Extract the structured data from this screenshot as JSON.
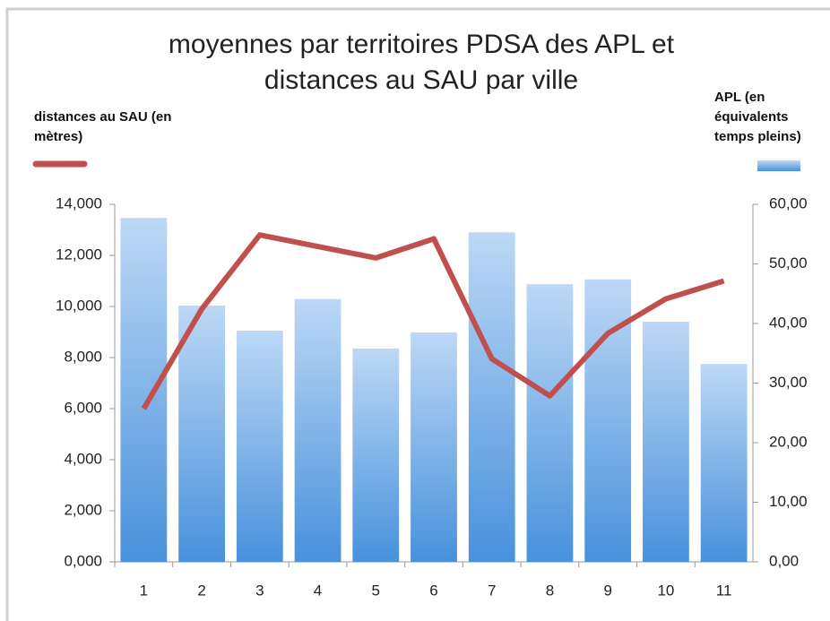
{
  "chart_data": {
    "type": "combo",
    "title": "moyennes par territoires PDSA des APL et distances au SAU par ville",
    "categories": [
      "1",
      "2",
      "3",
      "4",
      "5",
      "6",
      "7",
      "8",
      "9",
      "10",
      "11"
    ],
    "series": [
      {
        "name": "APL (en équivalents temps pleins)",
        "type": "bar",
        "axis": "y2",
        "color": "#5b9bd5",
        "values": [
          57.7,
          43.0,
          38.8,
          44.1,
          35.8,
          38.5,
          55.3,
          46.6,
          47.4,
          40.3,
          33.2
        ]
      },
      {
        "name": "distances au SAU (en mètres)",
        "type": "line",
        "axis": "y",
        "color": "#c0504d",
        "values": [
          6000,
          9900,
          12800,
          12350,
          11900,
          12650,
          7950,
          6500,
          8950,
          10300,
          11000
        ]
      }
    ],
    "ylim": [
      0,
      14000
    ],
    "yticks": [
      {
        "value": 0,
        "label": "0,000"
      },
      {
        "value": 2000,
        "label": "2,000"
      },
      {
        "value": 4000,
        "label": "4,000"
      },
      {
        "value": 6000,
        "label": "6,000"
      },
      {
        "value": 8000,
        "label": "8,000"
      },
      {
        "value": 10000,
        "label": "10,000"
      },
      {
        "value": 12000,
        "label": "12,000"
      },
      {
        "value": 14000,
        "label": "14,000"
      }
    ],
    "y2lim": [
      0,
      60
    ],
    "y2ticks": [
      {
        "value": 0,
        "label": "0,00"
      },
      {
        "value": 10,
        "label": "10,00"
      },
      {
        "value": 20,
        "label": "20,00"
      },
      {
        "value": 30,
        "label": "30,00"
      },
      {
        "value": 40,
        "label": "40,00"
      },
      {
        "value": 50,
        "label": "50,00"
      },
      {
        "value": 60,
        "label": "60,00"
      }
    ],
    "grid": false
  }
}
